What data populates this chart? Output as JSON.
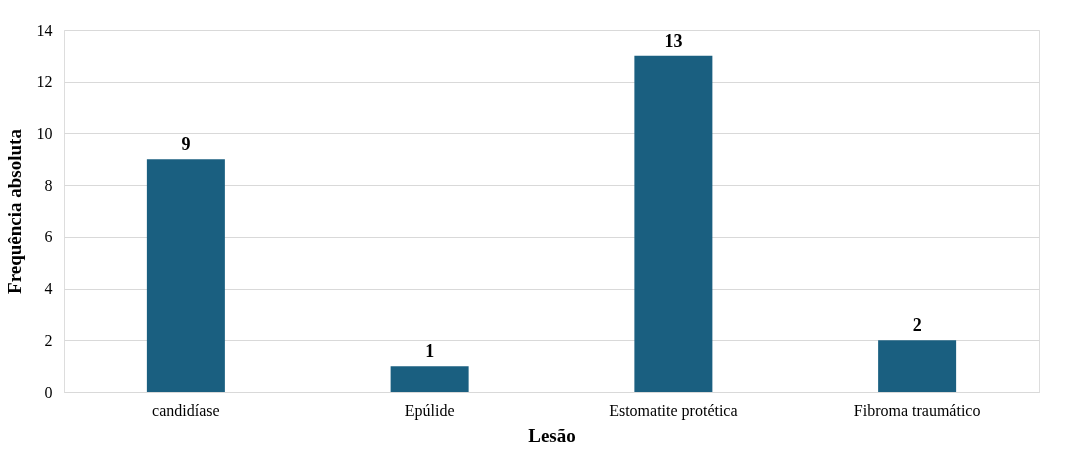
{
  "chart_data": {
    "type": "bar",
    "xlabel": "Lesão",
    "ylabel": "Frequência absoluta",
    "categories": [
      "candidíase",
      "Epúlide",
      "Estomatite protética",
      "Fibroma traumático"
    ],
    "values": [
      9,
      1,
      13,
      2
    ],
    "color": "#1a5f80",
    "ylim": [
      0,
      14
    ],
    "yticks": [
      0,
      2,
      4,
      6,
      8,
      10,
      12,
      14
    ],
    "grid": "y",
    "data_labels": true
  }
}
